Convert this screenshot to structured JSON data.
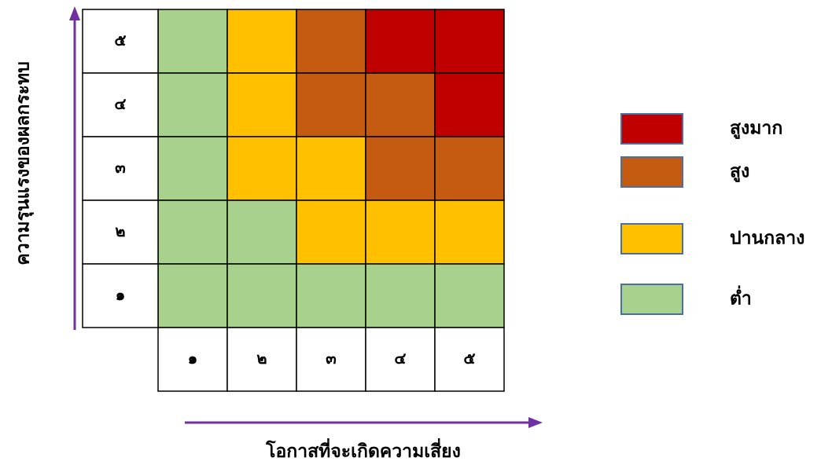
{
  "chart_data": {
    "type": "heatmap",
    "xlabel": "โอกาสที่จะเกิดความเสี่ยง",
    "ylabel": "ความรุนแรงของผลกระทบ",
    "x_ticks": [
      "๑",
      "๒",
      "๓",
      "๔",
      "๕"
    ],
    "y_ticks": [
      "๑",
      "๒",
      "๓",
      "๔",
      "๕"
    ],
    "levels": [
      {
        "key": "very_high",
        "label": "สูงมาก",
        "color": "#C00000"
      },
      {
        "key": "high",
        "label": "สูง",
        "color": "#C55A11"
      },
      {
        "key": "medium",
        "label": "ปานกลาง",
        "color": "#FFC000"
      },
      {
        "key": "low",
        "label": "ต่ำ",
        "color": "#A9D18E"
      }
    ],
    "cells_by_row_from_top": [
      [
        "low",
        "medium",
        "high",
        "very_high",
        "very_high"
      ],
      [
        "low",
        "medium",
        "high",
        "high",
        "very_high"
      ],
      [
        "low",
        "medium",
        "medium",
        "high",
        "high"
      ],
      [
        "low",
        "low",
        "medium",
        "medium",
        "medium"
      ],
      [
        "low",
        "low",
        "low",
        "low",
        "low"
      ]
    ],
    "legend_position": "right",
    "arrow_color": "#7030A0",
    "legend_border_color": "#4A6FA5"
  }
}
